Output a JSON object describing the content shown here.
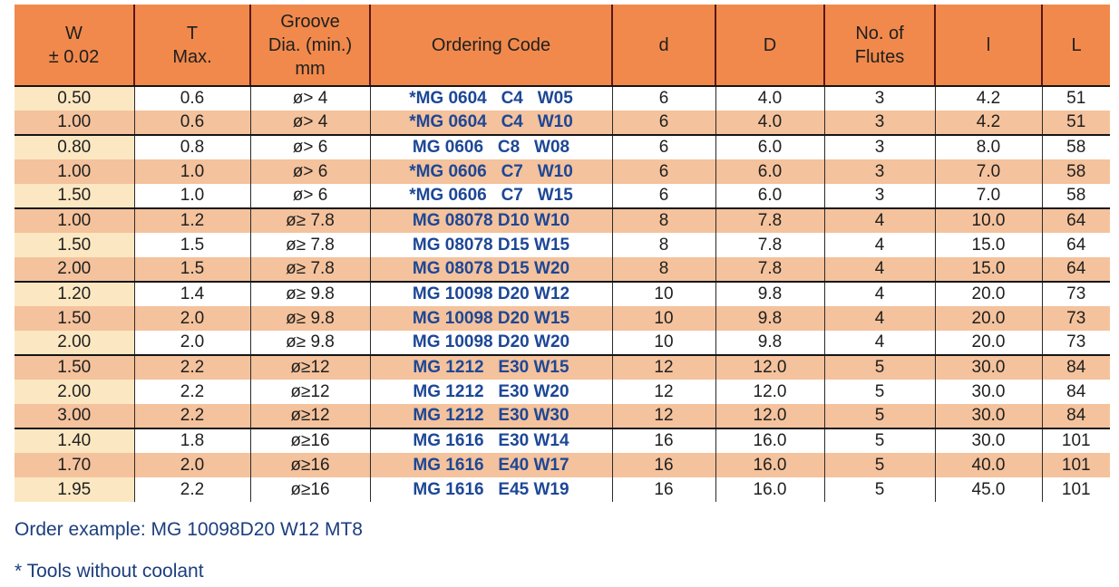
{
  "colors": {
    "header_bg": "#F1894C",
    "row_salmon": "#F4C29C",
    "first_col_cream": "#FBE8C2",
    "code_blue": "#1D4796",
    "note_navy": "#1C3E7D",
    "grid_dark": "#2B2B2B",
    "header_divider": "#571818",
    "group_line": "#151515",
    "text_dark": "#1F1F1F"
  },
  "table": {
    "columns": [
      "W\n± 0.02",
      "T\nMax.",
      "Groove\nDia. (min.)\nmm",
      "Ordering Code",
      "d",
      "D",
      "No. of\nFlutes",
      "l",
      "L"
    ],
    "groups": [
      {
        "rows": [
          [
            "0.50",
            "0.6",
            "ø> 4",
            "*MG 0604   C4   W05",
            "6",
            "4.0",
            "3",
            "4.2",
            "51"
          ],
          [
            "1.00",
            "0.6",
            "ø> 4",
            "*MG 0604   C4   W10",
            "6",
            "4.0",
            "3",
            "4.2",
            "51"
          ]
        ]
      },
      {
        "rows": [
          [
            "0.80",
            "0.8",
            "ø> 6",
            "MG 0606   C8   W08",
            "6",
            "6.0",
            "3",
            "8.0",
            "58"
          ],
          [
            "1.00",
            "1.0",
            "ø> 6",
            "*MG 0606   C7   W10",
            "6",
            "6.0",
            "3",
            "7.0",
            "58"
          ],
          [
            "1.50",
            "1.0",
            "ø> 6",
            "*MG 0606   C7   W15",
            "6",
            "6.0",
            "3",
            "7.0",
            "58"
          ]
        ]
      },
      {
        "rows": [
          [
            "1.00",
            "1.2",
            "ø≥ 7.8",
            "MG 08078 D10 W10",
            "8",
            "7.8",
            "4",
            "10.0",
            "64"
          ],
          [
            "1.50",
            "1.5",
            "ø≥ 7.8",
            "MG 08078 D15 W15",
            "8",
            "7.8",
            "4",
            "15.0",
            "64"
          ],
          [
            "2.00",
            "1.5",
            "ø≥ 7.8",
            "MG 08078 D15 W20",
            "8",
            "7.8",
            "4",
            "15.0",
            "64"
          ]
        ]
      },
      {
        "rows": [
          [
            "1.20",
            "1.4",
            "ø≥ 9.8",
            "MG 10098 D20 W12",
            "10",
            "9.8",
            "4",
            "20.0",
            "73"
          ],
          [
            "1.50",
            "2.0",
            "ø≥ 9.8",
            "MG 10098 D20 W15",
            "10",
            "9.8",
            "4",
            "20.0",
            "73"
          ],
          [
            "2.00",
            "2.0",
            "ø≥ 9.8",
            "MG 10098 D20 W20",
            "10",
            "9.8",
            "4",
            "20.0",
            "73"
          ]
        ]
      },
      {
        "rows": [
          [
            "1.50",
            "2.2",
            "ø≥12",
            "MG 1212   E30 W15",
            "12",
            "12.0",
            "5",
            "30.0",
            "84"
          ],
          [
            "2.00",
            "2.2",
            "ø≥12",
            "MG 1212   E30 W20",
            "12",
            "12.0",
            "5",
            "30.0",
            "84"
          ],
          [
            "3.00",
            "2.2",
            "ø≥12",
            "MG 1212   E30 W30",
            "12",
            "12.0",
            "5",
            "30.0",
            "84"
          ]
        ]
      },
      {
        "rows": [
          [
            "1.40",
            "1.8",
            "ø≥16",
            "MG 1616   E30 W14",
            "16",
            "16.0",
            "5",
            "30.0",
            "101"
          ],
          [
            "1.70",
            "2.0",
            "ø≥16",
            "MG 1616   E40 W17",
            "16",
            "16.0",
            "5",
            "40.0",
            "101"
          ],
          [
            "1.95",
            "2.2",
            "ø≥16",
            "MG 1616   E45 W19",
            "16",
            "16.0",
            "5",
            "45.0",
            "101"
          ]
        ]
      }
    ]
  },
  "notes": {
    "order_example": "Order example: MG 10098D20 W12 MT8",
    "coolant": "* Tools without coolant"
  }
}
